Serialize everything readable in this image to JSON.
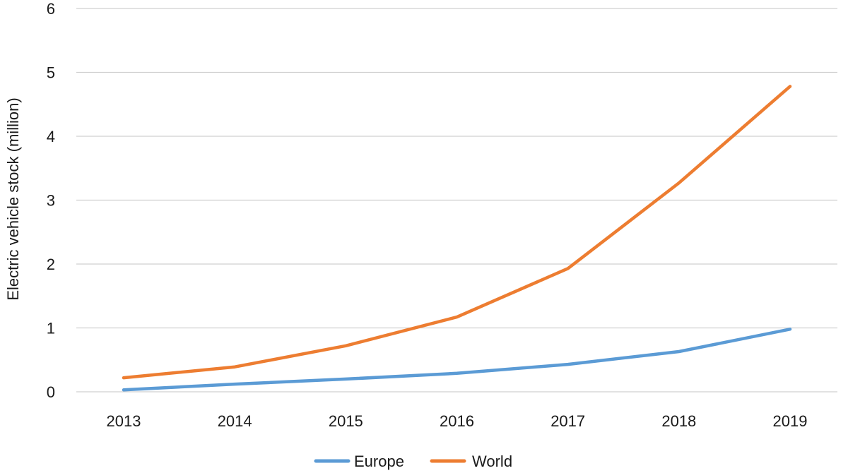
{
  "chart_data": {
    "type": "line",
    "title": "",
    "xlabel": "",
    "ylabel": "Electric vehicle stock (million)",
    "categories": [
      "2013",
      "2014",
      "2015",
      "2016",
      "2017",
      "2018",
      "2019"
    ],
    "yticks": [
      "0",
      "1",
      "2",
      "3",
      "4",
      "5",
      "6"
    ],
    "ylim": [
      0,
      6
    ],
    "grid": true,
    "legend_position": "bottom",
    "series": [
      {
        "name": "Europe",
        "color": "#5b9bd5",
        "values": [
          0.03,
          0.12,
          0.2,
          0.29,
          0.43,
          0.63,
          0.98
        ]
      },
      {
        "name": "World",
        "color": "#ed7d31",
        "values": [
          0.22,
          0.39,
          0.72,
          1.17,
          1.93,
          3.27,
          4.78
        ]
      }
    ]
  }
}
